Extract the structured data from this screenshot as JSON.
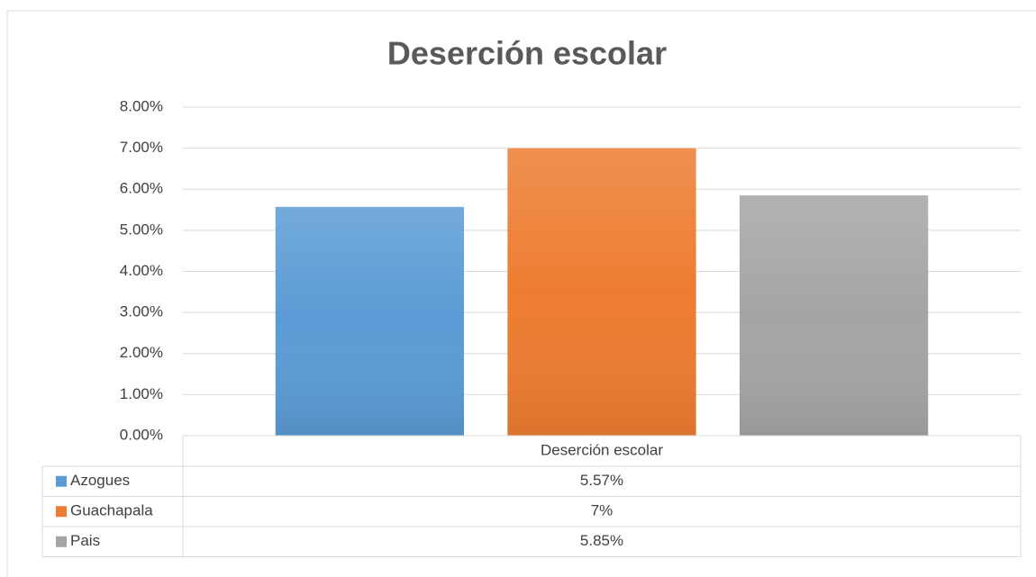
{
  "chart_data": {
    "type": "bar",
    "title": "Deserción escolar",
    "categories": [
      "Deserción escolar"
    ],
    "series": [
      {
        "name": "Azogues",
        "color": "#5b9bd5",
        "values": [
          5.57
        ],
        "value_labels": [
          "5.57%"
        ]
      },
      {
        "name": "Guachapala",
        "color": "#ed7d31",
        "values": [
          7
        ],
        "value_labels": [
          "7%"
        ]
      },
      {
        "name": "Pais",
        "color": "#a5a5a5",
        "values": [
          5.85
        ],
        "value_labels": [
          "5.85%"
        ]
      }
    ],
    "ylim": [
      0,
      8
    ],
    "yticks": [
      {
        "value": 0,
        "label": "0.00%"
      },
      {
        "value": 1,
        "label": "1.00%"
      },
      {
        "value": 2,
        "label": "2.00%"
      },
      {
        "value": 3,
        "label": "3.00%"
      },
      {
        "value": 4,
        "label": "4.00%"
      },
      {
        "value": 5,
        "label": "5.00%"
      },
      {
        "value": 6,
        "label": "6.00%"
      },
      {
        "value": 7,
        "label": "7.00%"
      },
      {
        "value": 8,
        "label": "8.00%"
      }
    ],
    "grid": true,
    "legend": "data-table"
  }
}
